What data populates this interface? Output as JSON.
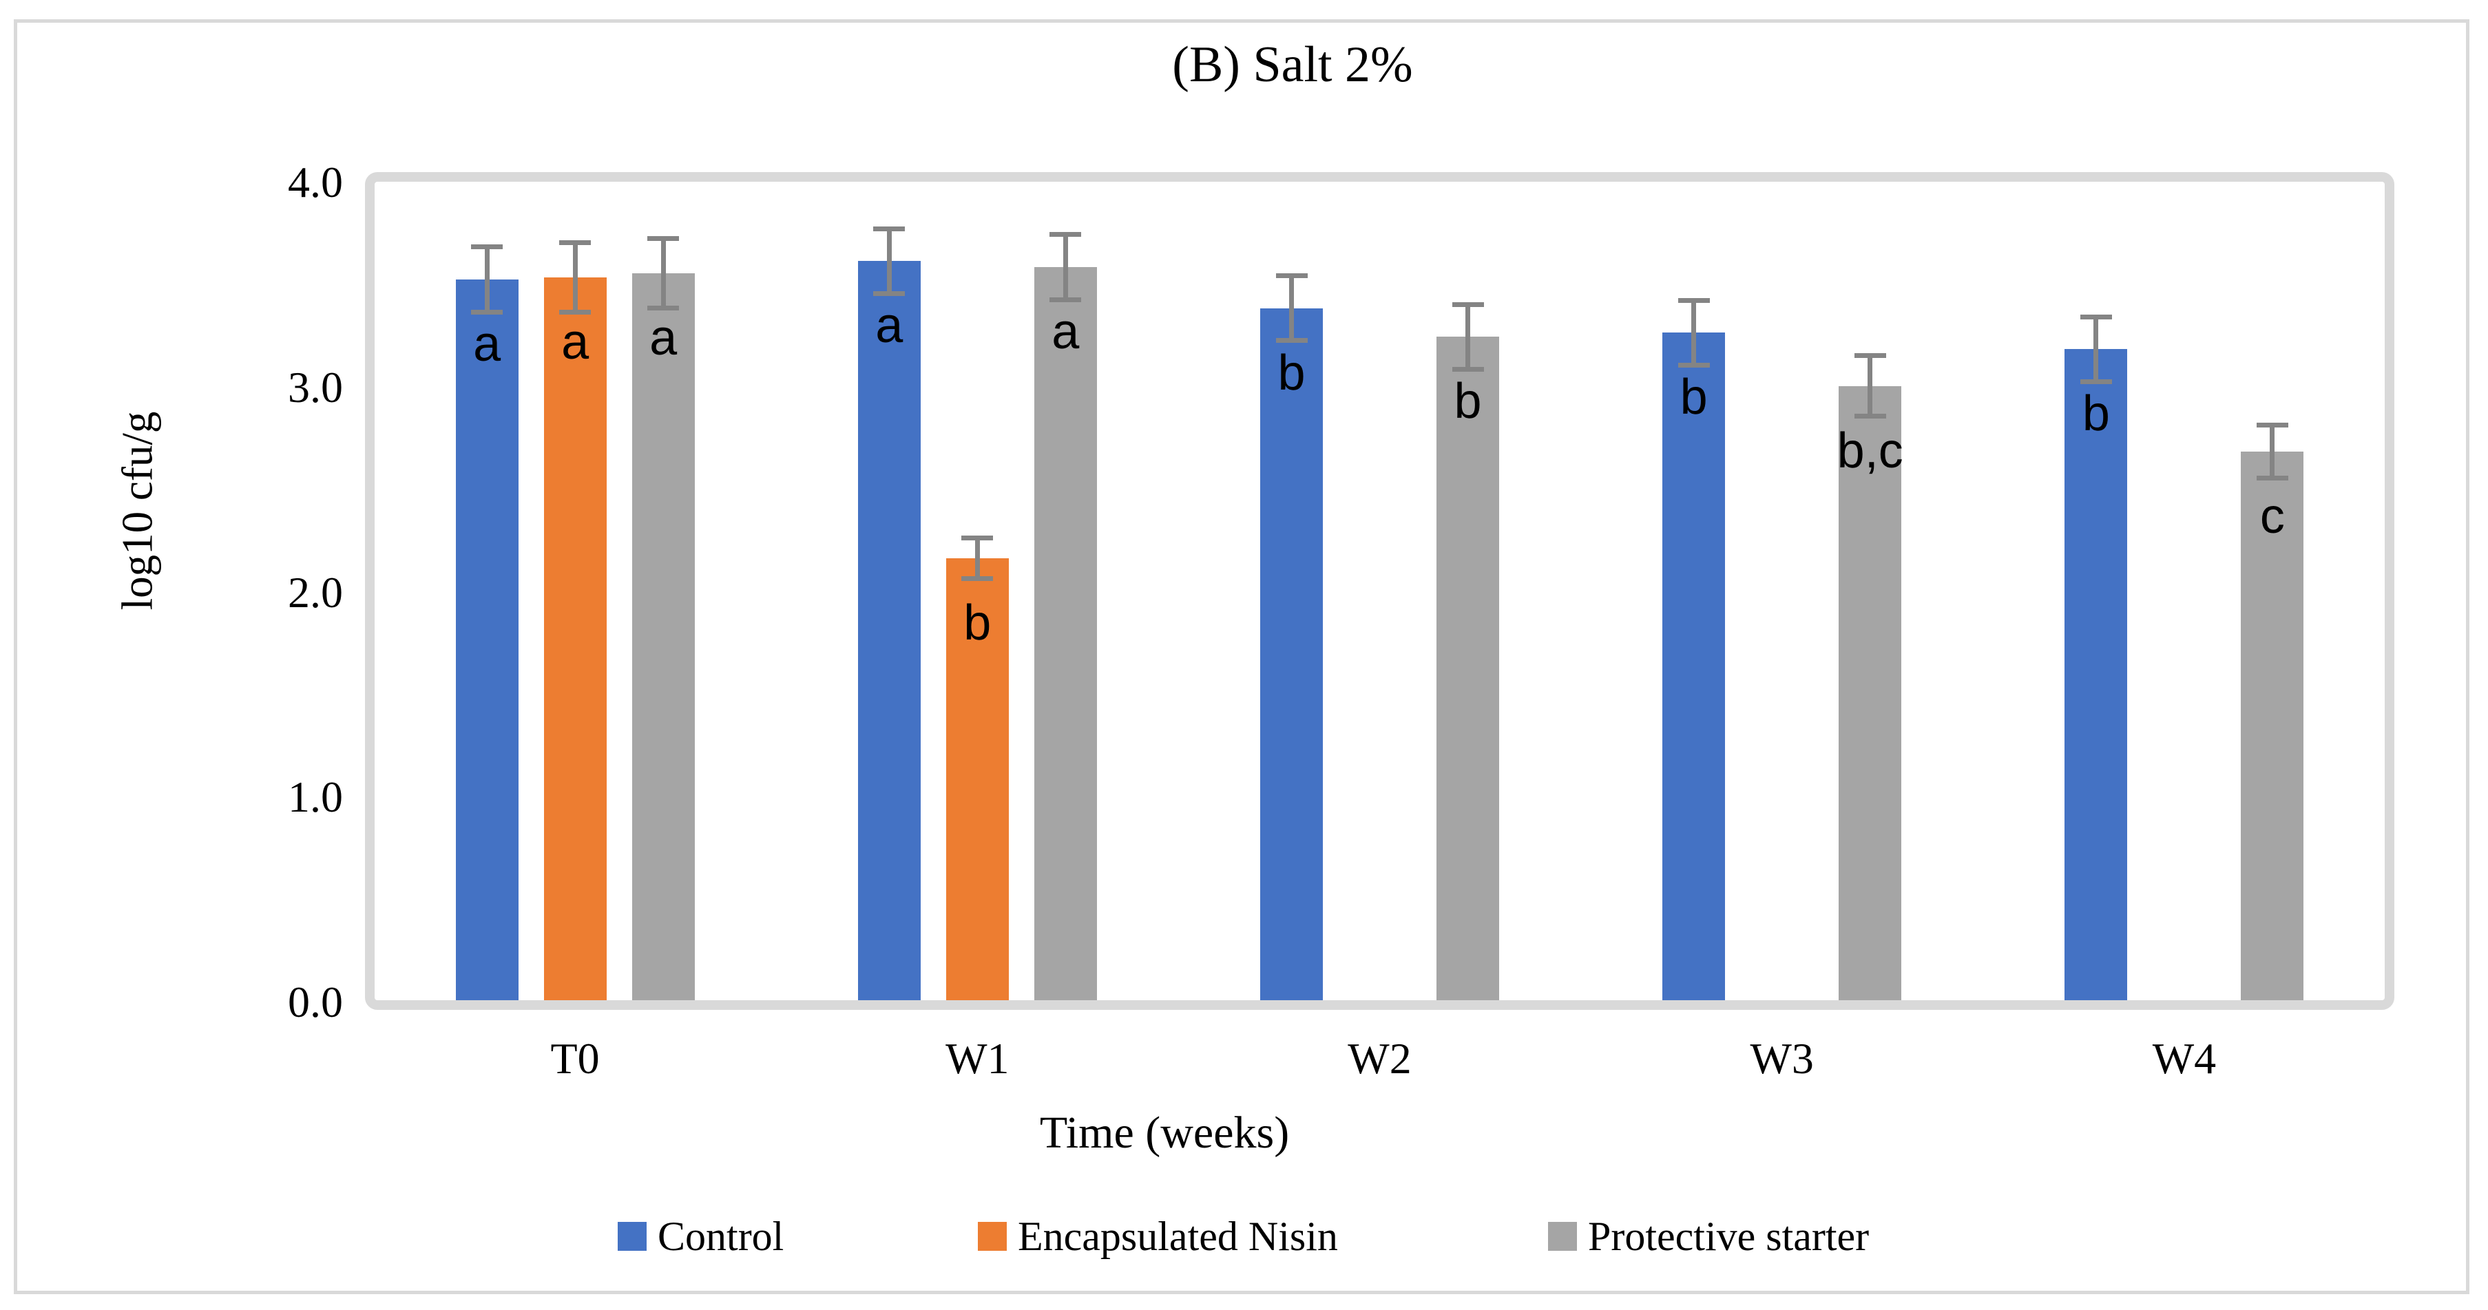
{
  "figure": {
    "title": "(B) Salt 2%"
  },
  "y_axis": {
    "title": "log10 cfu/g",
    "tick_labels": [
      "4.0",
      "3.0",
      "2.0",
      "1.0",
      "0.0"
    ]
  },
  "x_axis": {
    "title": "Time (weeks)",
    "categories": [
      "T0",
      "W1",
      "W2",
      "W3",
      "W4"
    ]
  },
  "legend": {
    "items": [
      {
        "label": "Control",
        "color": "#4472C4"
      },
      {
        "label": "Encapsulated Nisin",
        "color": "#ED7D31"
      },
      {
        "label": "Protective starter",
        "color": "#A5A5A5"
      }
    ]
  },
  "colors": {
    "control": "#4472C4",
    "encapsulated_nisin": "#ED7D31",
    "protective_starter": "#A5A5A5",
    "error_bar": "#848484",
    "plot_border": "#D9D9D9",
    "outer_border": "#D9D9D9",
    "letters": "#000000"
  },
  "chart_data": {
    "type": "bar",
    "title": "(B) Salt 2%",
    "xlabel": "Time (weeks)",
    "ylabel": "log10 cfu/g",
    "ylim": [
      0.0,
      4.0
    ],
    "y_tick_step": 1.0,
    "grid": false,
    "legend_position": "bottom",
    "error_bars": true,
    "categories": [
      "T0",
      "W1",
      "W2",
      "W3",
      "W4"
    ],
    "series": [
      {
        "name": "Control",
        "color": "#4472C4",
        "values": [
          3.52,
          3.61,
          3.38,
          3.26,
          3.18
        ],
        "errors": [
          0.17,
          0.17,
          0.17,
          0.17,
          0.17
        ],
        "sig_letters": [
          "a",
          "a",
          "b",
          "b",
          "b"
        ]
      },
      {
        "name": "Encapsulated Nisin",
        "color": "#ED7D31",
        "values": [
          3.53,
          2.16,
          null,
          null,
          null
        ],
        "errors": [
          0.18,
          0.11,
          null,
          null,
          null
        ],
        "sig_letters": [
          "a",
          "b",
          null,
          null,
          null
        ]
      },
      {
        "name": "Protective starter",
        "color": "#A5A5A5",
        "values": [
          3.55,
          3.58,
          3.24,
          3.0,
          2.68
        ],
        "errors": [
          0.18,
          0.17,
          0.17,
          0.16,
          0.14
        ],
        "sig_letters": [
          "a",
          "a",
          "b",
          "b,c",
          "c"
        ]
      }
    ]
  }
}
